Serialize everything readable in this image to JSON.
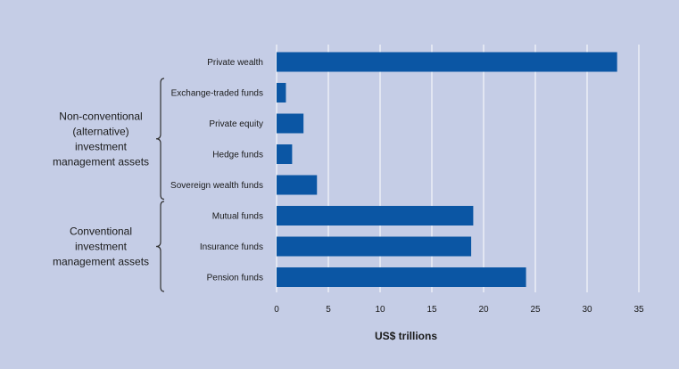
{
  "colors": {
    "background": "#c5cde6",
    "bar": "#0b56a4",
    "grid": "#ffffff",
    "text": "#1a1a1a",
    "bracket": "#333333"
  },
  "chart_data": {
    "type": "bar",
    "orientation": "horizontal",
    "categories": [
      "Private wealth",
      "Exchange-traded funds",
      "Private equity",
      "Hedge funds",
      "Sovereign wealth funds",
      "Mutual funds",
      "Insurance funds",
      "Pension funds"
    ],
    "values": [
      32.9,
      0.9,
      2.6,
      1.5,
      3.9,
      19.0,
      18.8,
      24.1
    ],
    "xlabel": "US$ trillions",
    "xlim": [
      0,
      35
    ],
    "xticks": [
      0,
      5,
      10,
      15,
      20,
      25,
      30,
      35
    ],
    "grid": true,
    "groups": [
      {
        "label_lines": [
          "Non-conventional",
          "(alternative)",
          "investment",
          "management assets"
        ],
        "categories": [
          "Exchange-traded funds",
          "Private equity",
          "Hedge funds",
          "Sovereign wealth funds"
        ]
      },
      {
        "label_lines": [
          "Conventional",
          "investment",
          "management assets"
        ],
        "categories": [
          "Mutual funds",
          "Insurance funds",
          "Pension funds"
        ]
      }
    ]
  }
}
